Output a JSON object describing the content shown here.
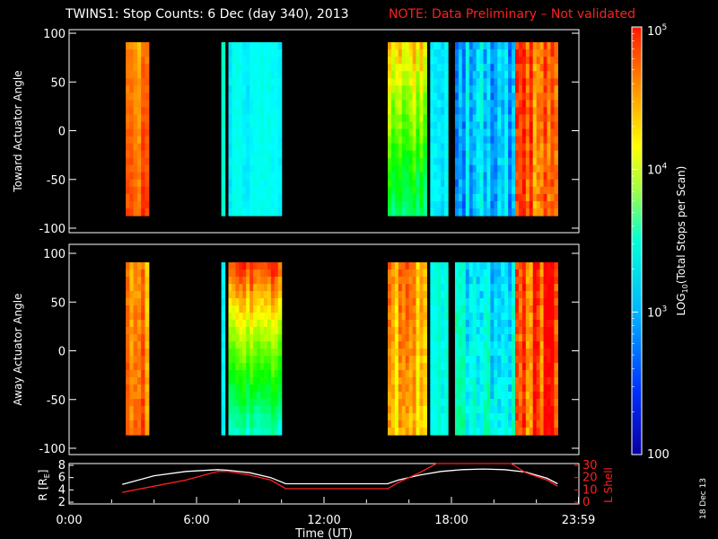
{
  "title": {
    "main": "TWINS1: Stop Counts:  6 Dec (day 340), 2013",
    "note": "NOTE: Data Preliminary – Not validated"
  },
  "footer_date": "18 Dec 13",
  "colors": {
    "background": "#000000",
    "foreground": "#ffffff",
    "note_red": "#ff2020",
    "r_line": "#ffffff",
    "lshell_line": "#ff2020"
  },
  "chart_data": [
    {
      "type": "heatmap",
      "name": "toward-panel",
      "ylabel": "Toward Actuator Angle",
      "ylim": [
        -100,
        100
      ],
      "yticks": [
        -100,
        -50,
        0,
        50,
        100
      ],
      "xlim_hours": [
        0,
        24
      ],
      "data_blocks": [
        {
          "start": "02:40",
          "end": "03:45",
          "hue_top": 0.09,
          "hue_bottom": 0.05,
          "noise": 0.03
        },
        {
          "start": "07:10",
          "end": "07:20",
          "hue_top": 0.48,
          "hue_bottom": 0.48,
          "noise": 0.02
        },
        {
          "start": "07:30",
          "end": "10:00",
          "hue_top": 0.5,
          "hue_bottom": 0.5,
          "noise": 0.02
        },
        {
          "start": "15:00",
          "end": "16:50",
          "hue_top": 0.14,
          "hue_bottom": 0.4,
          "noise": 0.05
        },
        {
          "start": "17:00",
          "end": "17:50",
          "hue_top": 0.5,
          "hue_bottom": 0.5,
          "noise": 0.03
        },
        {
          "start": "18:10",
          "end": "21:00",
          "hue_top": 0.54,
          "hue_bottom": 0.54,
          "noise": 0.06
        },
        {
          "start": "21:00",
          "end": "23:00",
          "hue_top": 0.05,
          "hue_bottom": 0.06,
          "noise": 0.06
        }
      ]
    },
    {
      "type": "heatmap",
      "name": "away-panel",
      "ylabel": "Away Actuator Angle",
      "ylim": [
        -100,
        100
      ],
      "yticks": [
        -100,
        -50,
        0,
        50,
        100
      ],
      "xlim_hours": [
        0,
        24
      ],
      "data_blocks": [
        {
          "start": "02:40",
          "end": "03:45",
          "hue_top": 0.1,
          "hue_bottom": 0.07,
          "noise": 0.04
        },
        {
          "start": "07:10",
          "end": "07:20",
          "hue_top": 0.52,
          "hue_bottom": 0.52,
          "noise": 0.02
        },
        {
          "start": "07:30",
          "end": "10:00",
          "hue_top": 0.04,
          "hue_bottom": 0.46,
          "noise": 0.04
        },
        {
          "start": "15:00",
          "end": "16:50",
          "hue_top": 0.1,
          "hue_bottom": 0.14,
          "noise": 0.05
        },
        {
          "start": "17:00",
          "end": "17:50",
          "hue_top": 0.48,
          "hue_bottom": 0.48,
          "noise": 0.03
        },
        {
          "start": "18:10",
          "end": "21:00",
          "hue_top": 0.52,
          "hue_bottom": 0.48,
          "noise": 0.06
        },
        {
          "start": "21:00",
          "end": "23:00",
          "hue_top": 0.04,
          "hue_bottom": 0.05,
          "noise": 0.06
        }
      ]
    },
    {
      "type": "line",
      "name": "orbit-panel",
      "xlabel": "Time (UT)",
      "xticks": [
        "0:00",
        "6:00",
        "12:00",
        "18:00",
        "23:59"
      ],
      "xtick_hours": [
        0,
        6,
        12,
        18,
        23.98
      ],
      "xlim_hours": [
        0,
        24
      ],
      "ylabel_left": "R [R",
      "ylabel_left_sub": "E",
      "ylabel_left_close": "]",
      "ylim_left": [
        2,
        8
      ],
      "yticks_left": [
        2,
        4,
        6,
        8
      ],
      "ylabel_right": "L Shell",
      "ylim_right": [
        0,
        30
      ],
      "yticks_right": [
        0,
        10,
        20,
        30
      ],
      "series": [
        {
          "name": "R",
          "axis": "left",
          "color": "#ffffff",
          "x": [
            2.5,
            4,
            5.5,
            7,
            7.5,
            8.5,
            9.5,
            10.2,
            11,
            12,
            13,
            14,
            15,
            15.5,
            16.5,
            17.5,
            18.5,
            19.5,
            20.5,
            21.5,
            22.5,
            23
          ],
          "y": [
            4.9,
            6.3,
            7.0,
            7.3,
            7.2,
            6.8,
            6.0,
            5.0,
            5.0,
            5.0,
            5.0,
            5.0,
            5.0,
            5.6,
            6.4,
            7.0,
            7.3,
            7.4,
            7.3,
            6.9,
            5.9,
            5.0
          ]
        },
        {
          "name": "L Shell",
          "axis": "right",
          "color": "#ff2020",
          "x": [
            2.5,
            4,
            5.5,
            7,
            7.5,
            8.5,
            9.5,
            10.2,
            11,
            12,
            13,
            14,
            15,
            15.5,
            16.5,
            17.3,
            20.8,
            21.5,
            22.5,
            23
          ],
          "y": [
            8.0,
            13.0,
            18.0,
            25.0,
            25.0,
            22.0,
            18.0,
            11.0,
            11.0,
            11.0,
            11.0,
            11.0,
            11.0,
            16.0,
            24.0,
            32.0,
            32.0,
            24.0,
            18.0,
            13.0
          ]
        }
      ]
    },
    {
      "type": "heatmap",
      "name": "colorbar",
      "ylabel": "LOG",
      "ylabel_sub": "10",
      "ylabel_rest": "(Total Stops per Scan)",
      "scale": "log",
      "ylim": [
        100,
        100000
      ],
      "tick_labels": [
        {
          "base": "10",
          "exp": "5",
          "value": 100000
        },
        {
          "base": "10",
          "exp": "4",
          "value": 10000
        },
        {
          "base": "10",
          "exp": "3",
          "value": 1000
        },
        {
          "base": "100",
          "exp": "",
          "value": 100
        }
      ]
    }
  ]
}
